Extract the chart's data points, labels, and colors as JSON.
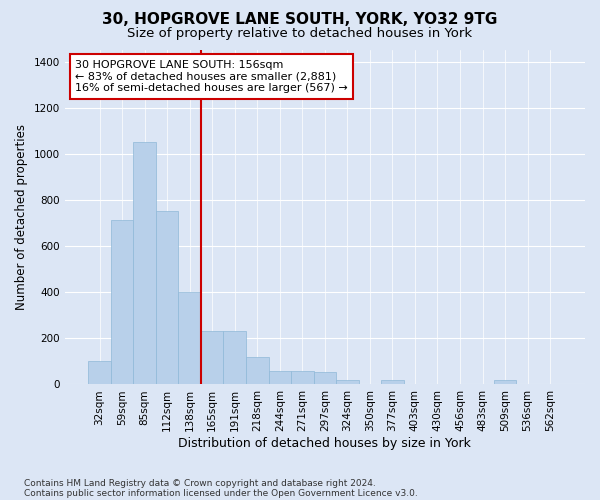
{
  "title1": "30, HOPGROVE LANE SOUTH, YORK, YO32 9TG",
  "title2": "Size of property relative to detached houses in York",
  "xlabel": "Distribution of detached houses by size in York",
  "ylabel": "Number of detached properties",
  "bar_labels": [
    "32sqm",
    "59sqm",
    "85sqm",
    "112sqm",
    "138sqm",
    "165sqm",
    "191sqm",
    "218sqm",
    "244sqm",
    "271sqm",
    "297sqm",
    "324sqm",
    "350sqm",
    "377sqm",
    "403sqm",
    "430sqm",
    "456sqm",
    "483sqm",
    "509sqm",
    "536sqm",
    "562sqm"
  ],
  "bar_values": [
    100,
    715,
    1050,
    750,
    400,
    230,
    230,
    120,
    60,
    60,
    55,
    20,
    2,
    20,
    2,
    2,
    2,
    2,
    20,
    2,
    2
  ],
  "bar_color": "#b8d0ea",
  "bar_edge_color": "#8fb8d8",
  "red_line_x": 4.5,
  "annotation_text": "30 HOPGROVE LANE SOUTH: 156sqm\n← 83% of detached houses are smaller (2,881)\n16% of semi-detached houses are larger (567) →",
  "annotation_box_color": "#ffffff",
  "annotation_box_edge": "#cc0000",
  "ylim": [
    0,
    1450
  ],
  "yticks": [
    0,
    200,
    400,
    600,
    800,
    1000,
    1200,
    1400
  ],
  "background_color": "#dce6f5",
  "plot_bg_color": "#dce6f5",
  "grid_color": "#ffffff",
  "footer1": "Contains HM Land Registry data © Crown copyright and database right 2024.",
  "footer2": "Contains public sector information licensed under the Open Government Licence v3.0.",
  "title1_fontsize": 11,
  "title2_fontsize": 9.5,
  "xlabel_fontsize": 9,
  "ylabel_fontsize": 8.5,
  "tick_fontsize": 7.5,
  "footer_fontsize": 6.5,
  "annotation_fontsize": 8
}
